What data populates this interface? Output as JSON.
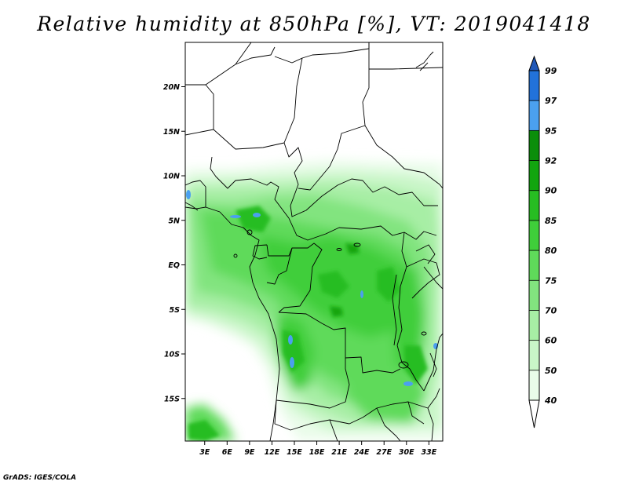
{
  "title": "Relative humidity at 850hPa [%], VT: 2019041418",
  "credit": "GrADS: IGES/COLA",
  "map": {
    "lat_labels": [
      {
        "lat": 20,
        "label": "20N"
      },
      {
        "lat": 15,
        "label": "15N"
      },
      {
        "lat": 10,
        "label": "10N"
      },
      {
        "lat": 5,
        "label": "5N"
      },
      {
        "lat": 0,
        "label": "EQ"
      },
      {
        "lat": -5,
        "label": "5S"
      },
      {
        "lat": -10,
        "label": "10S"
      },
      {
        "lat": -15,
        "label": "15S"
      }
    ],
    "lon_labels": [
      {
        "lon": 3,
        "label": "3E"
      },
      {
        "lon": 6,
        "label": "6E"
      },
      {
        "lon": 9,
        "label": "9E"
      },
      {
        "lon": 12,
        "label": "12E"
      },
      {
        "lon": 15,
        "label": "15E"
      },
      {
        "lon": 18,
        "label": "18E"
      },
      {
        "lon": 21,
        "label": "21E"
      },
      {
        "lon": 24,
        "label": "24E"
      },
      {
        "lon": 27,
        "label": "27E"
      },
      {
        "lon": 30,
        "label": "30E"
      },
      {
        "lon": 33,
        "label": "33E"
      }
    ]
  },
  "colorbar": {
    "levels": [
      {
        "label": "40",
        "color": "#e9fce9"
      },
      {
        "label": "50",
        "color": "#c9f6c8"
      },
      {
        "label": "60",
        "color": "#a7eea5"
      },
      {
        "label": "70",
        "color": "#82e47f"
      },
      {
        "label": "75",
        "color": "#5fda5a"
      },
      {
        "label": "80",
        "color": "#3fce3a"
      },
      {
        "label": "85",
        "color": "#27bd22"
      },
      {
        "label": "90",
        "color": "#12a50f"
      },
      {
        "label": "92",
        "color": "#0b8e0a"
      },
      {
        "label": "95",
        "color": "#4ba0ef"
      },
      {
        "label": "97",
        "color": "#2272da"
      },
      {
        "label": "99",
        "color": "#1f57b8"
      }
    ],
    "under_color": "#ffffff",
    "over_color": "#1f57b8"
  }
}
